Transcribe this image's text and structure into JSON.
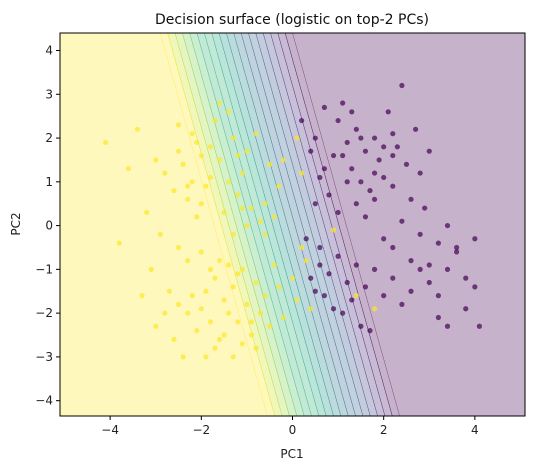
{
  "chart_data": {
    "type": "scatter",
    "title": "Decision surface (logistic on top-2 PCs)",
    "xlabel": "PC1",
    "ylabel": "PC2",
    "xlim": [
      -5.1,
      5.1
    ],
    "ylim": [
      -4.35,
      4.4
    ],
    "xticks": [
      -4,
      -2,
      0,
      2,
      4
    ],
    "yticks": [
      -4,
      -3,
      -2,
      -1,
      0,
      1,
      2,
      3,
      4
    ],
    "xtick_labels": [
      "−4",
      "−2",
      "0",
      "2",
      "4"
    ],
    "ytick_labels": [
      "−4",
      "−3",
      "−2",
      "−1",
      "0",
      "1",
      "2",
      "3",
      "4"
    ],
    "grid": false,
    "legend": "none",
    "decision_surface": {
      "colormap": "viridis",
      "boundary_line": {
        "top": [
          -1.45,
          4.4
        ],
        "bottom": [
          0.9,
          -4.35
        ]
      },
      "band_halfwidth": 1.45,
      "levels": 18,
      "opacity": 0.3
    },
    "series": [
      {
        "class": 1,
        "color": "#fde725",
        "points": [
          [
            -4.1,
            1.9
          ],
          [
            -3.6,
            1.3
          ],
          [
            -3.4,
            2.2
          ],
          [
            -3.2,
            0.3
          ],
          [
            -3.8,
            -0.4
          ],
          [
            -3.0,
            1.5
          ],
          [
            -2.6,
            0.8
          ],
          [
            -2.5,
            2.3
          ],
          [
            -2.4,
            1.4
          ],
          [
            -2.3,
            0.6
          ],
          [
            -2.2,
            2.1
          ],
          [
            -2.1,
            1.9
          ],
          [
            -2.0,
            1.6
          ],
          [
            -1.9,
            0.9
          ],
          [
            -1.8,
            1.1
          ],
          [
            -1.7,
            2.4
          ],
          [
            -1.6,
            1.5
          ],
          [
            -1.5,
            0.3
          ],
          [
            -1.4,
            1.0
          ],
          [
            -1.3,
            2.0
          ],
          [
            -1.2,
            0.7
          ],
          [
            -1.1,
            1.2
          ],
          [
            -1.0,
            1.7
          ],
          [
            -0.9,
            0.4
          ],
          [
            -2.2,
            1.0
          ],
          [
            -2.0,
            0.5
          ],
          [
            -1.8,
            1.8
          ],
          [
            -1.6,
            2.8
          ],
          [
            -1.4,
            2.6
          ],
          [
            -1.2,
            1.6
          ],
          [
            -0.8,
            2.1
          ],
          [
            -0.5,
            1.4
          ],
          [
            -0.3,
            0.9
          ],
          [
            -0.2,
            1.5
          ],
          [
            0.1,
            2.0
          ],
          [
            0.2,
            1.2
          ],
          [
            -0.6,
            0.5
          ],
          [
            -0.4,
            0.2
          ],
          [
            -0.7,
            0.1
          ],
          [
            -1.0,
            0.0
          ],
          [
            -1.3,
            -0.2
          ],
          [
            -1.1,
            0.4
          ],
          [
            -2.3,
            0.9
          ],
          [
            -2.5,
            1.7
          ],
          [
            -2.8,
            1.2
          ],
          [
            -2.9,
            -0.2
          ],
          [
            -3.1,
            -1.0
          ],
          [
            -3.3,
            -1.6
          ],
          [
            -3.0,
            -2.3
          ],
          [
            -2.7,
            -1.5
          ],
          [
            -2.5,
            -1.8
          ],
          [
            -2.3,
            -2.0
          ],
          [
            -2.2,
            -1.6
          ],
          [
            -2.1,
            -2.4
          ],
          [
            -2.0,
            -1.9
          ],
          [
            -1.9,
            -1.5
          ],
          [
            -1.8,
            -2.2
          ],
          [
            -1.7,
            -1.2
          ],
          [
            -1.6,
            -2.6
          ],
          [
            -1.5,
            -1.7
          ],
          [
            -1.4,
            -2.0
          ],
          [
            -1.3,
            -1.4
          ],
          [
            -1.2,
            -2.2
          ],
          [
            -1.1,
            -1.0
          ],
          [
            -1.0,
            -1.8
          ],
          [
            -0.9,
            -2.5
          ],
          [
            -0.8,
            -1.3
          ],
          [
            -0.7,
            -2.0
          ],
          [
            -0.6,
            -1.6
          ],
          [
            -0.5,
            -2.3
          ],
          [
            -0.4,
            -0.9
          ],
          [
            -0.3,
            -1.4
          ],
          [
            -0.2,
            -2.1
          ],
          [
            0.0,
            -1.2
          ],
          [
            0.1,
            -1.7
          ],
          [
            0.2,
            -0.5
          ],
          [
            0.3,
            -0.8
          ],
          [
            0.4,
            -1.9
          ],
          [
            -1.9,
            -3.0
          ],
          [
            -1.7,
            -2.8
          ],
          [
            -1.5,
            -2.5
          ],
          [
            -1.3,
            -3.0
          ],
          [
            -1.1,
            -2.7
          ],
          [
            -0.9,
            -2.2
          ],
          [
            -0.8,
            -2.8
          ],
          [
            -2.4,
            -3.0
          ],
          [
            -2.6,
            -2.6
          ],
          [
            -2.8,
            -2.0
          ],
          [
            -1.6,
            -0.8
          ],
          [
            -1.4,
            -0.9
          ],
          [
            -1.2,
            -1.1
          ],
          [
            -2.0,
            -0.6
          ],
          [
            -2.3,
            -0.8
          ],
          [
            -2.5,
            -0.5
          ],
          [
            -1.8,
            -1.0
          ],
          [
            -0.6,
            -0.2
          ],
          [
            1.8,
            -1.9
          ],
          [
            1.4,
            -1.6
          ],
          [
            0.9,
            -0.1
          ],
          [
            -2.1,
            0.2
          ]
        ]
      },
      {
        "class": 0,
        "color": "#440154",
        "points": [
          [
            0.5,
            2.0
          ],
          [
            0.7,
            2.7
          ],
          [
            0.9,
            1.6
          ],
          [
            1.0,
            2.4
          ],
          [
            1.1,
            2.8
          ],
          [
            1.2,
            1.9
          ],
          [
            1.3,
            1.3
          ],
          [
            1.4,
            2.2
          ],
          [
            1.5,
            1.0
          ],
          [
            1.6,
            1.7
          ],
          [
            1.7,
            0.8
          ],
          [
            1.8,
            2.0
          ],
          [
            1.9,
            1.5
          ],
          [
            2.0,
            1.1
          ],
          [
            2.1,
            2.6
          ],
          [
            2.2,
            0.9
          ],
          [
            2.3,
            1.8
          ],
          [
            2.4,
            3.2
          ],
          [
            2.5,
            1.4
          ],
          [
            2.6,
            0.6
          ],
          [
            2.7,
            2.2
          ],
          [
            2.8,
            1.2
          ],
          [
            2.9,
            0.4
          ],
          [
            3.0,
            1.7
          ],
          [
            0.6,
            1.1
          ],
          [
            0.8,
            0.7
          ],
          [
            1.0,
            0.3
          ],
          [
            1.2,
            1.0
          ],
          [
            1.4,
            0.5
          ],
          [
            1.6,
            0.2
          ],
          [
            1.8,
            0.6
          ],
          [
            2.0,
            -0.3
          ],
          [
            2.2,
            -0.5
          ],
          [
            2.4,
            0.1
          ],
          [
            2.6,
            -0.8
          ],
          [
            2.8,
            -0.2
          ],
          [
            3.0,
            -0.9
          ],
          [
            3.2,
            -0.4
          ],
          [
            3.4,
            0.0
          ],
          [
            3.6,
            -0.6
          ],
          [
            3.8,
            -1.2
          ],
          [
            4.0,
            -0.3
          ],
          [
            0.6,
            -0.5
          ],
          [
            0.8,
            -1.1
          ],
          [
            1.0,
            -0.7
          ],
          [
            1.2,
            -1.3
          ],
          [
            1.4,
            -0.9
          ],
          [
            1.6,
            -1.4
          ],
          [
            1.8,
            -1.0
          ],
          [
            2.0,
            -1.6
          ],
          [
            2.2,
            -1.2
          ],
          [
            2.4,
            -1.8
          ],
          [
            2.6,
            -1.5
          ],
          [
            2.8,
            -1.0
          ],
          [
            3.0,
            -1.3
          ],
          [
            3.2,
            -2.1
          ],
          [
            3.4,
            -1.0
          ],
          [
            3.6,
            -0.5
          ],
          [
            3.8,
            -1.9
          ],
          [
            4.0,
            -1.4
          ],
          [
            0.5,
            -1.5
          ],
          [
            0.7,
            -1.6
          ],
          [
            0.9,
            -1.9
          ],
          [
            1.1,
            -2.0
          ],
          [
            1.3,
            -1.7
          ],
          [
            1.5,
            -2.3
          ],
          [
            1.7,
            -2.4
          ],
          [
            0.4,
            -1.2
          ],
          [
            0.6,
            -0.9
          ],
          [
            0.3,
            -0.3
          ],
          [
            0.5,
            0.5
          ],
          [
            0.7,
            1.3
          ],
          [
            0.2,
            2.4
          ],
          [
            0.4,
            1.7
          ],
          [
            1.1,
            1.6
          ],
          [
            1.3,
            2.6
          ],
          [
            1.5,
            2.0
          ],
          [
            2.2,
            1.6
          ],
          [
            3.2,
            -1.6
          ],
          [
            3.4,
            -2.3
          ],
          [
            4.1,
            -2.3
          ],
          [
            2.2,
            2.1
          ],
          [
            1.8,
            1.2
          ],
          [
            2.0,
            1.8
          ]
        ]
      }
    ]
  }
}
